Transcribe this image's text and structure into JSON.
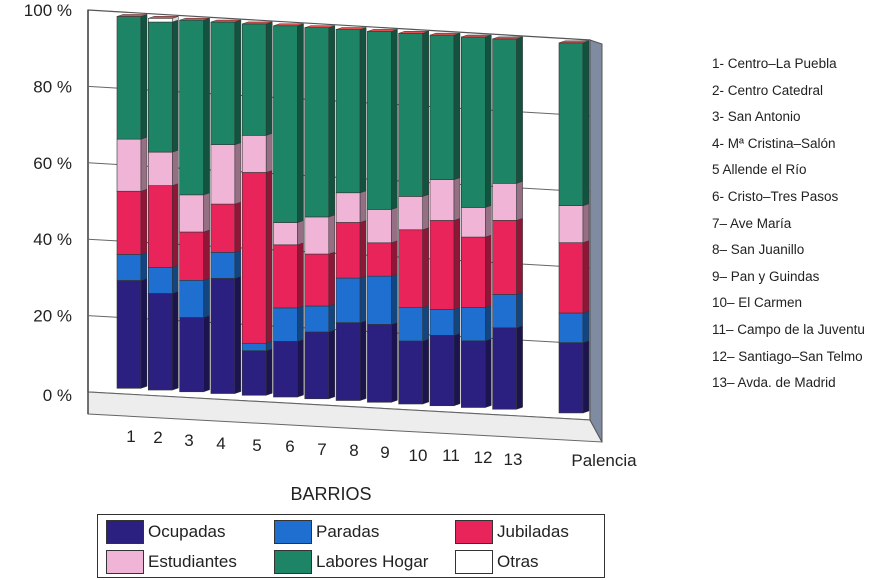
{
  "chart_data": {
    "type": "bar",
    "stacked": true,
    "three_d": true,
    "xlabel": "BARRIOS",
    "ylabel": "",
    "ylim": [
      0,
      100
    ],
    "yticks": [
      "0 %",
      "20 %",
      "40 %",
      "60 %",
      "80 %",
      "100 %"
    ],
    "categories": [
      "1",
      "2",
      "3",
      "4",
      "5",
      "6",
      "7",
      "8",
      "9",
      "10",
      "11",
      "12",
      "13",
      "Palencia"
    ],
    "series": [
      {
        "name": "Ocupadas",
        "color": "#2b2080",
        "values": [
          29,
          26,
          20,
          31,
          12,
          15,
          18,
          21,
          21,
          17,
          19,
          18,
          22,
          19
        ]
      },
      {
        "name": "Paradas",
        "color": "#1f6fd0",
        "values": [
          7,
          7,
          10,
          7,
          2,
          9,
          7,
          12,
          13,
          9,
          7,
          9,
          9,
          8
        ]
      },
      {
        "name": "Jubiladas",
        "color": "#e8245a",
        "values": [
          17,
          22,
          13,
          13,
          46,
          17,
          14,
          15,
          9,
          21,
          24,
          19,
          20,
          19
        ]
      },
      {
        "name": "Estudiantes",
        "color": "#f0b4d6",
        "values": [
          14,
          9,
          10,
          16,
          10,
          6,
          10,
          8,
          9,
          9,
          11,
          8,
          10,
          10
        ]
      },
      {
        "name": "Labores Hogar",
        "color": "#1d8466",
        "values": [
          33,
          35,
          47,
          33,
          30,
          53,
          51,
          44,
          48,
          44,
          39,
          46,
          39,
          44
        ]
      },
      {
        "name": "Otras",
        "color": "#ffffff",
        "values": [
          0,
          1,
          0,
          0,
          0,
          0,
          0,
          0,
          0,
          0,
          0,
          0,
          0,
          0
        ]
      }
    ],
    "legend_position": "bottom",
    "grid": true
  },
  "barrio_key": [
    "1- Centro–La Puebla",
    "2- Centro Catedral",
    "3- San Antonio",
    "4- Mª Cristina–Salón",
    "5 Allende el Río",
    "6- Cristo–Tres Pasos",
    "7– Ave María",
    "8– San Juanillo",
    "9– Pan y Guindas",
    "10– El Carmen",
    "11– Campo de la Juventu",
    "12– Santiago–San Telmo",
    "13– Avda. de Madrid"
  ]
}
